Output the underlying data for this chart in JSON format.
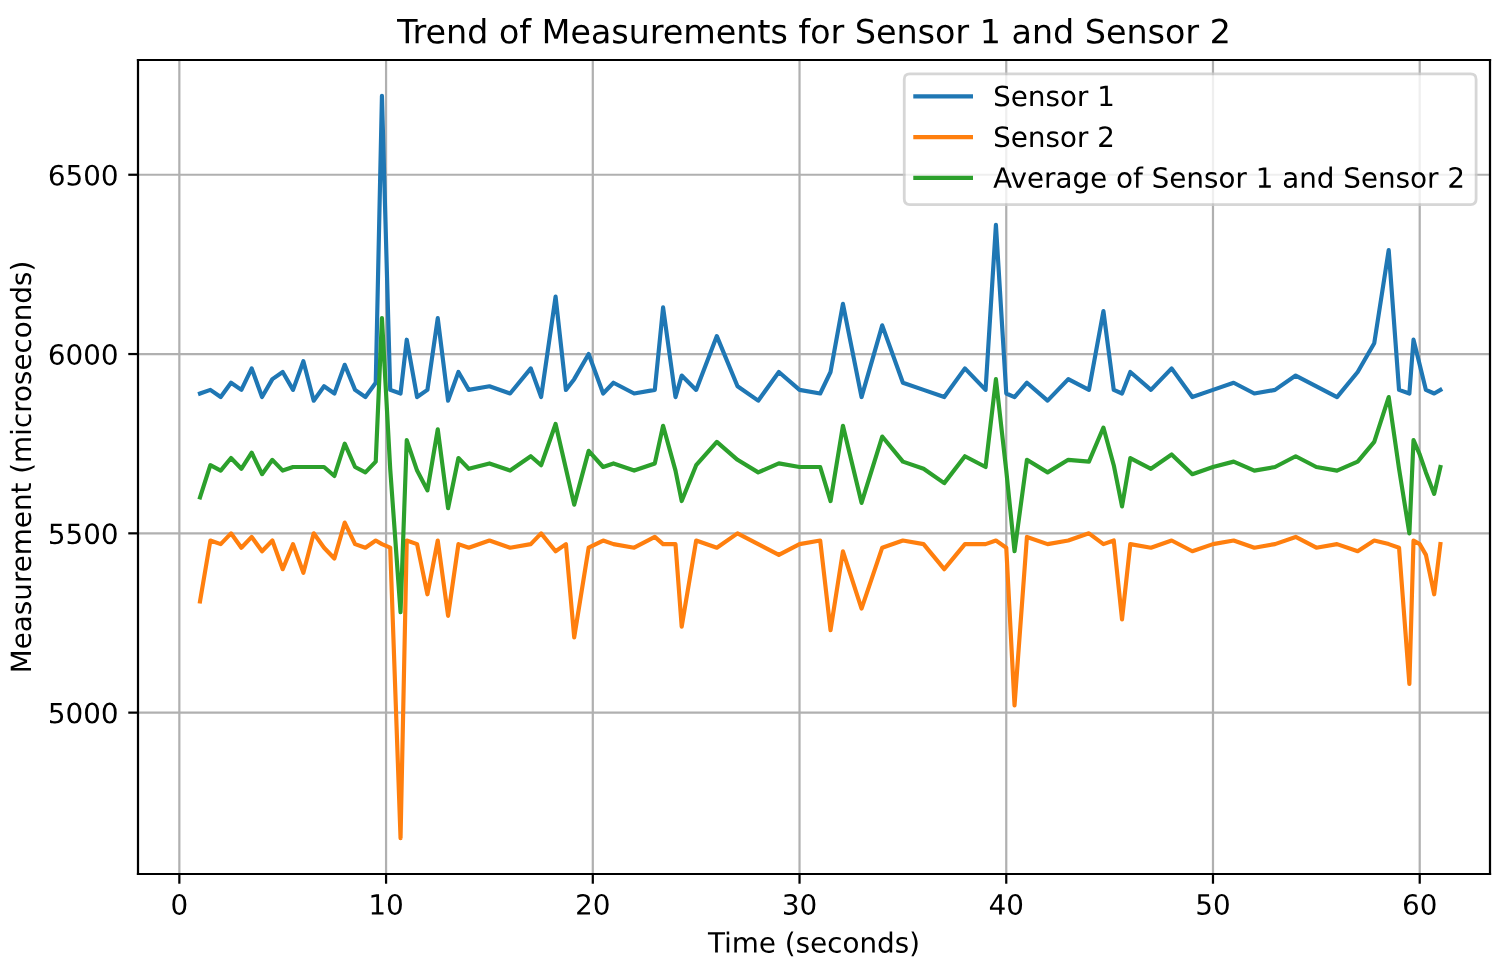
{
  "chart_data": {
    "type": "line",
    "title": "Trend of Measurements for Sensor 1 and Sensor 2",
    "xlabel": "Time (seconds)",
    "ylabel": "Measurement (microseconds)",
    "x": [
      1,
      1.5,
      2,
      2.5,
      3,
      3.5,
      4,
      4.5,
      5,
      5.5,
      6,
      6.5,
      7,
      7.5,
      8,
      8.5,
      9,
      9.5,
      9.8,
      10.2,
      10.7,
      11,
      11.5,
      12,
      12.5,
      13,
      13.5,
      14,
      15,
      16,
      17,
      17.5,
      18.2,
      18.7,
      19.1,
      19.8,
      20.5,
      21,
      22,
      23,
      23.4,
      24,
      24.3,
      25,
      26,
      27,
      28,
      29,
      30,
      31,
      31.5,
      32.1,
      33,
      34,
      35,
      36,
      37,
      38,
      39,
      39.5,
      40,
      40.4,
      41,
      42,
      43,
      44,
      44.7,
      45.2,
      45.6,
      46,
      47,
      48,
      49,
      50,
      51,
      52,
      53,
      54,
      55,
      56,
      57,
      57.8,
      58.5,
      59,
      59.5,
      59.7,
      60,
      60.3,
      60.7,
      61
    ],
    "series": [
      {
        "name": "Sensor 1",
        "color": "#1f77b4",
        "values": [
          5890,
          5900,
          5880,
          5920,
          5900,
          5960,
          5880,
          5930,
          5950,
          5900,
          5980,
          5870,
          5910,
          5890,
          5970,
          5900,
          5880,
          5920,
          6720,
          5900,
          5890,
          6040,
          5880,
          5900,
          6100,
          5870,
          5950,
          5900,
          5910,
          5890,
          5960,
          5880,
          6160,
          5900,
          5930,
          6000,
          5890,
          5920,
          5890,
          5900,
          6130,
          5880,
          5940,
          5900,
          6050,
          5910,
          5870,
          5950,
          5900,
          5890,
          5950,
          6140,
          5880,
          6080,
          5920,
          5900,
          5880,
          5960,
          5900,
          6360,
          5890,
          5880,
          5920,
          5870,
          5930,
          5900,
          6120,
          5900,
          5890,
          5950,
          5900,
          5960,
          5880,
          5900,
          5920,
          5890,
          5900,
          5940,
          5910,
          5880,
          5950,
          6030,
          6290,
          5900,
          5890,
          6040,
          5970,
          5900,
          5890,
          5900
        ]
      },
      {
        "name": "Sensor 2",
        "color": "#ff7f0e",
        "values": [
          5310,
          5480,
          5470,
          5500,
          5460,
          5490,
          5450,
          5480,
          5400,
          5470,
          5390,
          5500,
          5460,
          5430,
          5530,
          5470,
          5460,
          5480,
          5470,
          5460,
          4650,
          5480,
          5470,
          5330,
          5480,
          5270,
          5470,
          5460,
          5480,
          5460,
          5470,
          5500,
          5450,
          5470,
          5210,
          5460,
          5480,
          5470,
          5460,
          5490,
          5470,
          5470,
          5240,
          5480,
          5460,
          5500,
          5470,
          5440,
          5470,
          5480,
          5230,
          5450,
          5290,
          5460,
          5480,
          5470,
          5400,
          5470,
          5470,
          5480,
          5460,
          5020,
          5490,
          5470,
          5480,
          5500,
          5470,
          5480,
          5260,
          5470,
          5460,
          5480,
          5450,
          5470,
          5480,
          5460,
          5470,
          5490,
          5460,
          5470,
          5450,
          5480,
          5470,
          5460,
          5080,
          5480,
          5470,
          5440,
          5330,
          5470
        ]
      },
      {
        "name": "Average of Sensor 1 and Sensor 2",
        "color": "#2ca02c",
        "values": [
          5600,
          5690,
          5675,
          5710,
          5680,
          5725,
          5665,
          5705,
          5675,
          5685,
          5685,
          5685,
          5685,
          5660,
          5750,
          5685,
          5670,
          5700,
          6100,
          5680,
          5280,
          5760,
          5675,
          5620,
          5790,
          5570,
          5710,
          5680,
          5695,
          5675,
          5715,
          5690,
          5805,
          5680,
          5580,
          5730,
          5685,
          5695,
          5675,
          5695,
          5800,
          5675,
          5590,
          5690,
          5755,
          5705,
          5670,
          5695,
          5685,
          5685,
          5590,
          5800,
          5585,
          5770,
          5700,
          5680,
          5640,
          5715,
          5685,
          5930,
          5675,
          5450,
          5705,
          5670,
          5705,
          5700,
          5795,
          5690,
          5575,
          5710,
          5680,
          5720,
          5665,
          5685,
          5700,
          5675,
          5685,
          5715,
          5685,
          5675,
          5700,
          5755,
          5880,
          5680,
          5500,
          5760,
          5720,
          5670,
          5610,
          5685
        ]
      }
    ],
    "xlim": [
      -2,
      63.4
    ],
    "ylim": [
      4550,
      6820
    ],
    "xticks": [
      0,
      10,
      20,
      30,
      40,
      50,
      60
    ],
    "yticks": [
      5000,
      5500,
      6000,
      6500
    ],
    "grid": true,
    "legend": "top right",
    "marker": "none",
    "line_style": "solid"
  }
}
